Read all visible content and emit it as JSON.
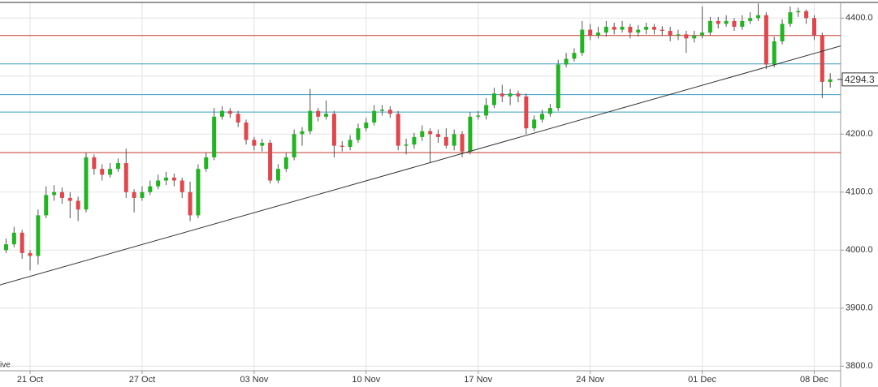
{
  "chart_data": {
    "type": "candlestick",
    "corner_text": "ive",
    "xlim": [
      -0.76,
      104.3
    ],
    "xticks": [
      {
        "value": 3,
        "label": "21 Oct"
      },
      {
        "value": 17,
        "label": "27 Oct"
      },
      {
        "value": 31,
        "label": "03 Nov"
      },
      {
        "value": 45,
        "label": "10 Nov"
      },
      {
        "value": 59,
        "label": "17 Nov"
      },
      {
        "value": 73,
        "label": "24 Nov"
      },
      {
        "value": 87,
        "label": "01 Dec"
      },
      {
        "value": 101,
        "label": "08 Dec"
      }
    ],
    "ylim": [
      3792,
      4427
    ],
    "yticks": [
      {
        "value": 3800,
        "label": "3800.0"
      },
      {
        "value": 3900,
        "label": "3900.0"
      },
      {
        "value": 4000,
        "label": "4000.0"
      },
      {
        "value": 4100,
        "label": "4100.0"
      },
      {
        "value": 4200,
        "label": "4200.0"
      },
      {
        "value": 4400,
        "label": "4400.0"
      }
    ],
    "ygrid": [
      3800,
      3900,
      4000,
      4100,
      4200,
      4300,
      4400
    ],
    "up_color": "#22b422",
    "down_color": "#e0474c",
    "open": [
      4000,
      4010,
      4030,
      3995,
      3990,
      4060,
      4095,
      4100,
      4090,
      4085,
      4070,
      4160,
      4140,
      4130,
      4140,
      4150,
      4100,
      4090,
      4100,
      4110,
      4120,
      4125,
      4120,
      4100,
      4060,
      4140,
      4160,
      4230,
      4240,
      4235,
      4220,
      4190,
      4180,
      4185,
      4120,
      4140,
      4160,
      4200,
      4205,
      4240,
      4230,
      4235,
      4180,
      4178,
      4190,
      4210,
      4220,
      4240,
      4242,
      4235,
      4180,
      4182,
      4195,
      4205,
      4200,
      4195,
      4180,
      4200,
      4170,
      4230,
      4232,
      4250,
      4270,
      4265,
      4270,
      4265,
      4210,
      4225,
      4235,
      4245,
      4320,
      4330,
      4340,
      4380,
      4370,
      4375,
      4385,
      4380,
      4385,
      4375,
      4380,
      4385,
      4380,
      4378,
      4370,
      4372,
      4365,
      4370,
      4375,
      4395,
      4390,
      4395,
      4385,
      4395,
      4400,
      4405,
      4320,
      4360,
      4390,
      4410,
      4412,
      4400,
      4370,
      4290
    ],
    "high": [
      4020,
      4040,
      4035,
      4000,
      4070,
      4110,
      4112,
      4108,
      4100,
      4092,
      4168,
      4165,
      4148,
      4150,
      4158,
      4175,
      4105,
      4110,
      4120,
      4130,
      4135,
      4132,
      4125,
      4118,
      4148,
      4168,
      4245,
      4248,
      4245,
      4240,
      4225,
      4195,
      4192,
      4190,
      4148,
      4168,
      4208,
      4212,
      4278,
      4245,
      4258,
      4240,
      4188,
      4198,
      4218,
      4228,
      4250,
      4250,
      4248,
      4240,
      4192,
      4202,
      4215,
      4210,
      4208,
      4210,
      4208,
      4205,
      4238,
      4240,
      4262,
      4280,
      4285,
      4278,
      4275,
      4270,
      4232,
      4242,
      4252,
      4328,
      4340,
      4348,
      4395,
      4390,
      4385,
      4395,
      4392,
      4395,
      4390,
      4388,
      4392,
      4390,
      4386,
      4385,
      4380,
      4378,
      4378,
      4420,
      4402,
      4402,
      4405,
      4400,
      4405,
      4410,
      4425,
      4410,
      4368,
      4398,
      4420,
      4418,
      4415,
      4405,
      4375,
      4305
    ],
    "low": [
      3995,
      4005,
      3985,
      3965,
      3975,
      4055,
      4085,
      4080,
      4055,
      4050,
      4065,
      4130,
      4120,
      4125,
      4135,
      4090,
      4065,
      4085,
      4095,
      4105,
      4112,
      4110,
      4090,
      4050,
      4055,
      4135,
      4155,
      4225,
      4228,
      4212,
      4182,
      4172,
      4170,
      4115,
      4115,
      4135,
      4155,
      4180,
      4200,
      4222,
      4225,
      4160,
      4170,
      4172,
      4185,
      4205,
      4215,
      4232,
      4228,
      4172,
      4165,
      4175,
      4188,
      4150,
      4185,
      4175,
      4172,
      4160,
      4165,
      4225,
      4225,
      4245,
      4255,
      4250,
      4255,
      4200,
      4205,
      4220,
      4230,
      4240,
      4315,
      4325,
      4335,
      4362,
      4365,
      4368,
      4372,
      4375,
      4365,
      4368,
      4372,
      4372,
      4370,
      4360,
      4362,
      4340,
      4358,
      4365,
      4370,
      4382,
      4385,
      4378,
      4380,
      4390,
      4395,
      4312,
      4315,
      4355,
      4385,
      4402,
      4390,
      4362,
      4262,
      4280
    ],
    "close": [
      4010,
      4030,
      3995,
      3990,
      4060,
      4095,
      4100,
      4090,
      4085,
      4070,
      4160,
      4140,
      4130,
      4140,
      4150,
      4100,
      4090,
      4100,
      4110,
      4120,
      4125,
      4120,
      4100,
      4060,
      4140,
      4160,
      4230,
      4240,
      4235,
      4220,
      4190,
      4180,
      4185,
      4120,
      4140,
      4160,
      4200,
      4205,
      4240,
      4230,
      4235,
      4180,
      4178,
      4190,
      4210,
      4220,
      4240,
      4242,
      4235,
      4180,
      4182,
      4195,
      4205,
      4200,
      4195,
      4180,
      4200,
      4170,
      4230,
      4232,
      4250,
      4270,
      4265,
      4270,
      4265,
      4210,
      4225,
      4235,
      4245,
      4320,
      4330,
      4340,
      4380,
      4370,
      4375,
      4385,
      4380,
      4385,
      4375,
      4380,
      4385,
      4380,
      4378,
      4370,
      4372,
      4365,
      4370,
      4375,
      4395,
      4390,
      4395,
      4385,
      4395,
      4400,
      4405,
      4320,
      4360,
      4390,
      4410,
      4412,
      4400,
      4370,
      4290,
      4294.3
    ],
    "levels": [
      {
        "value": 4370,
        "color": "#c0392b"
      },
      {
        "value": 4321,
        "color": "#3a9ec0"
      },
      {
        "value": 4268,
        "color": "#3a9ec0"
      },
      {
        "value": 4238,
        "color": "#3a9ec0"
      },
      {
        "value": 4168,
        "color": "#c0392b"
      }
    ],
    "trendline": {
      "x": [
        -0.76,
        104.3
      ],
      "values": [
        3940,
        4352
      ]
    },
    "last_price": 4294.3
  }
}
